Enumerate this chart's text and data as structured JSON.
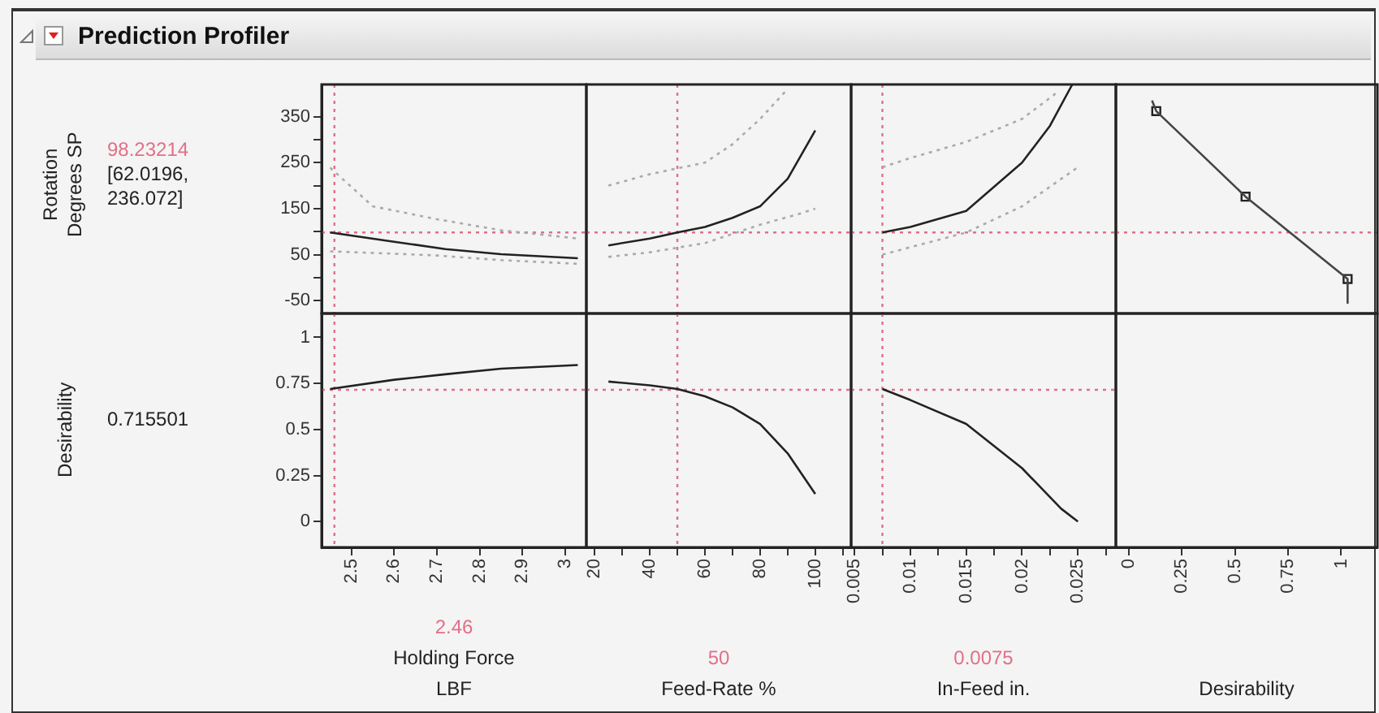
{
  "chart_data": [
    {
      "type": "line",
      "title": "Prediction Profiler",
      "ylabel": "Rotation Degrees SP",
      "annotations": [
        "[62.0196, 236.072]"
      ],
      "xlim": [
        2.43,
        3.05
      ],
      "ylim": [
        -78,
        420
      ],
      "xticks": [
        2.5,
        2.6,
        2.7,
        2.8,
        2.9,
        3
      ],
      "yticks": [
        {
          "value": -50,
          "label": "-50"
        },
        {
          "value": 0,
          "label": null
        },
        50,
        {
          "value": 100,
          "label": null
        },
        150,
        {
          "value": 200,
          "label": null
        },
        250,
        {
          "value": 300,
          "label": null
        },
        350
      ],
      "tick_labels": "y",
      "series": [
        {
          "color": "#222222",
          "x": [
            2.45,
            2.6,
            2.72,
            2.85,
            3.03
          ],
          "values": [
            98,
            78,
            62,
            51,
            42
          ]
        },
        {
          "color": "#aaaaaa",
          "line_style": "dotted",
          "x": [
            2.45,
            2.55,
            2.7,
            2.85,
            3.03
          ],
          "values": [
            239,
            155,
            127,
            103,
            85
          ]
        },
        {
          "color": "#aaaaaa",
          "line_style": "dotted",
          "x": [
            2.45,
            2.6,
            2.7,
            2.85,
            3.03
          ],
          "values": [
            57,
            52,
            48,
            38,
            30
          ]
        }
      ],
      "ref_lines": [
        {
          "axis": "x",
          "value": 2.46,
          "color": "#e07088"
        },
        {
          "axis": "y",
          "value": 98.23214,
          "label": "98.23214",
          "color": "#e07088"
        }
      ]
    },
    {
      "type": "line",
      "xlim": [
        17,
        113
      ],
      "ylim": [
        -78,
        420
      ],
      "xticks": [
        20,
        40,
        60,
        80,
        100
      ],
      "yticks": [
        -50,
        50,
        150,
        250,
        350
      ],
      "tick_labels": false,
      "series": [
        {
          "color": "#222222",
          "x": [
            25,
            40,
            50,
            60,
            70,
            80,
            90,
            100
          ],
          "values": [
            70,
            85,
            98,
            110,
            130,
            155,
            215,
            320
          ]
        },
        {
          "color": "#aaaaaa",
          "line_style": "dotted",
          "x": [
            25,
            40,
            60,
            70,
            80,
            90
          ],
          "values": [
            200,
            225,
            250,
            290,
            345,
            410
          ]
        },
        {
          "color": "#aaaaaa",
          "line_style": "dotted",
          "x": [
            25,
            40,
            60,
            80,
            95,
            100
          ],
          "values": [
            45,
            55,
            75,
            115,
            140,
            150
          ]
        }
      ],
      "ref_lines": [
        {
          "axis": "x",
          "value": 50,
          "color": "#e07088"
        },
        {
          "axis": "y",
          "value": 98.23214,
          "color": "#e07088"
        }
      ]
    },
    {
      "type": "line",
      "xlim": [
        0.0047,
        0.0284
      ],
      "ylim": [
        -78,
        420
      ],
      "xticks": [
        0.005,
        0.01,
        0.015,
        0.02,
        0.025
      ],
      "yticks": [
        -50,
        50,
        150,
        250,
        350
      ],
      "tick_labels": false,
      "series": [
        {
          "color": "#222222",
          "x": [
            0.0075,
            0.01,
            0.015,
            0.02,
            0.0225,
            0.0245
          ],
          "values": [
            98,
            110,
            145,
            250,
            330,
            420
          ]
        },
        {
          "color": "#aaaaaa",
          "line_style": "dotted",
          "x": [
            0.0075,
            0.01,
            0.015,
            0.02,
            0.023
          ],
          "values": [
            240,
            260,
            295,
            345,
            400
          ]
        },
        {
          "color": "#aaaaaa",
          "line_style": "dotted",
          "x": [
            0.0075,
            0.015,
            0.02,
            0.025
          ],
          "values": [
            50,
            98,
            155,
            240
          ]
        }
      ],
      "ref_lines": [
        {
          "axis": "x",
          "value": 0.0075,
          "color": "#e07088"
        },
        {
          "axis": "y",
          "value": 98.23214,
          "color": "#e07088"
        }
      ]
    },
    {
      "type": "line",
      "xlim": [
        -0.06,
        1.17
      ],
      "ylim": [
        -78,
        420
      ],
      "xticks": [
        0,
        0.25,
        0.5,
        0.75,
        1
      ],
      "yticks": [
        -50,
        50,
        150,
        250,
        350
      ],
      "tick_labels": false,
      "series": [
        {
          "color": "#444444",
          "x": [
            0.11,
            0.13,
            0.55,
            1.03,
            1.03
          ],
          "values": [
            385,
            362,
            176,
            -3,
            -55
          ]
        },
        {
          "type": "scatter",
          "marker": "square",
          "color": "#222222",
          "x": [
            0.13,
            0.55,
            1.03
          ],
          "values": [
            362,
            176,
            -3
          ]
        }
      ],
      "ref_lines": [
        {
          "axis": "y",
          "value": 98.23214,
          "color": "#e07088"
        }
      ]
    },
    {
      "type": "line",
      "ylabel": "Desirability",
      "annotations": [
        "0.715501"
      ],
      "xlabel": "Holding Force LBF",
      "xlim": [
        2.43,
        3.05
      ],
      "ylim": [
        -0.14,
        1.13
      ],
      "xticks": [
        2.5,
        2.6,
        2.7,
        2.8,
        2.9,
        3
      ],
      "yticks": [
        0,
        0.25,
        0.5,
        0.75,
        1
      ],
      "series": [
        {
          "color": "#222222",
          "x": [
            2.45,
            2.6,
            2.72,
            2.85,
            3.03
          ],
          "values": [
            0.72,
            0.77,
            0.8,
            0.83,
            0.85
          ]
        }
      ],
      "ref_lines": [
        {
          "axis": "x",
          "value": 2.46,
          "label": "2.46",
          "color": "#e07088"
        },
        {
          "axis": "y",
          "value": 0.715501,
          "color": "#e07088"
        }
      ]
    },
    {
      "type": "line",
      "xlabel": "Feed-Rate %",
      "xlim": [
        17,
        113
      ],
      "ylim": [
        -0.14,
        1.13
      ],
      "xticks": [
        20,
        {
          "value": 30,
          "label": null
        },
        40,
        {
          "value": 50,
          "label": null
        },
        60,
        {
          "value": 70,
          "label": null
        },
        80,
        {
          "value": 90,
          "label": null
        },
        100,
        {
          "value": 110,
          "label": null
        }
      ],
      "yticks": [
        0,
        0.25,
        0.5,
        0.75,
        1
      ],
      "tick_labels": "x",
      "series": [
        {
          "color": "#222222",
          "x": [
            25,
            40,
            50,
            60,
            70,
            80,
            90,
            100
          ],
          "values": [
            0.76,
            0.74,
            0.72,
            0.68,
            0.62,
            0.53,
            0.37,
            0.15
          ]
        }
      ],
      "ref_lines": [
        {
          "axis": "x",
          "value": 50,
          "label": "50",
          "color": "#e07088"
        },
        {
          "axis": "y",
          "value": 0.715501,
          "color": "#e07088"
        }
      ]
    },
    {
      "type": "line",
      "xlabel": "In-Feed in.",
      "xlim": [
        0.0047,
        0.0284
      ],
      "ylim": [
        -0.14,
        1.13
      ],
      "xticks": [
        0.005,
        {
          "value": 0.0075,
          "label": null
        },
        0.01,
        {
          "value": 0.0125,
          "label": null
        },
        0.015,
        {
          "value": 0.0175,
          "label": null
        },
        0.02,
        {
          "value": 0.0225,
          "label": null
        },
        0.025,
        {
          "value": 0.0275,
          "label": null
        }
      ],
      "yticks": [
        0,
        0.25,
        0.5,
        0.75,
        1
      ],
      "tick_labels": "x",
      "series": [
        {
          "color": "#222222",
          "x": [
            0.0075,
            0.01,
            0.015,
            0.02,
            0.0235,
            0.025
          ],
          "values": [
            0.72,
            0.66,
            0.53,
            0.29,
            0.07,
            0
          ]
        }
      ],
      "ref_lines": [
        {
          "axis": "x",
          "value": 0.0075,
          "label": "0.0075",
          "color": "#e07088"
        },
        {
          "axis": "y",
          "value": 0.715501,
          "color": "#e07088"
        }
      ]
    },
    {
      "type": "line",
      "xlabel": "Desirability",
      "xlim": [
        -0.06,
        1.17
      ],
      "ylim": [
        -0.14,
        1.13
      ],
      "xticks": [
        0,
        0.25,
        0.5,
        0.75,
        1
      ],
      "yticks": [
        0,
        0.25,
        0.5,
        0.75,
        1
      ],
      "tick_labels": "x"
    }
  ]
}
